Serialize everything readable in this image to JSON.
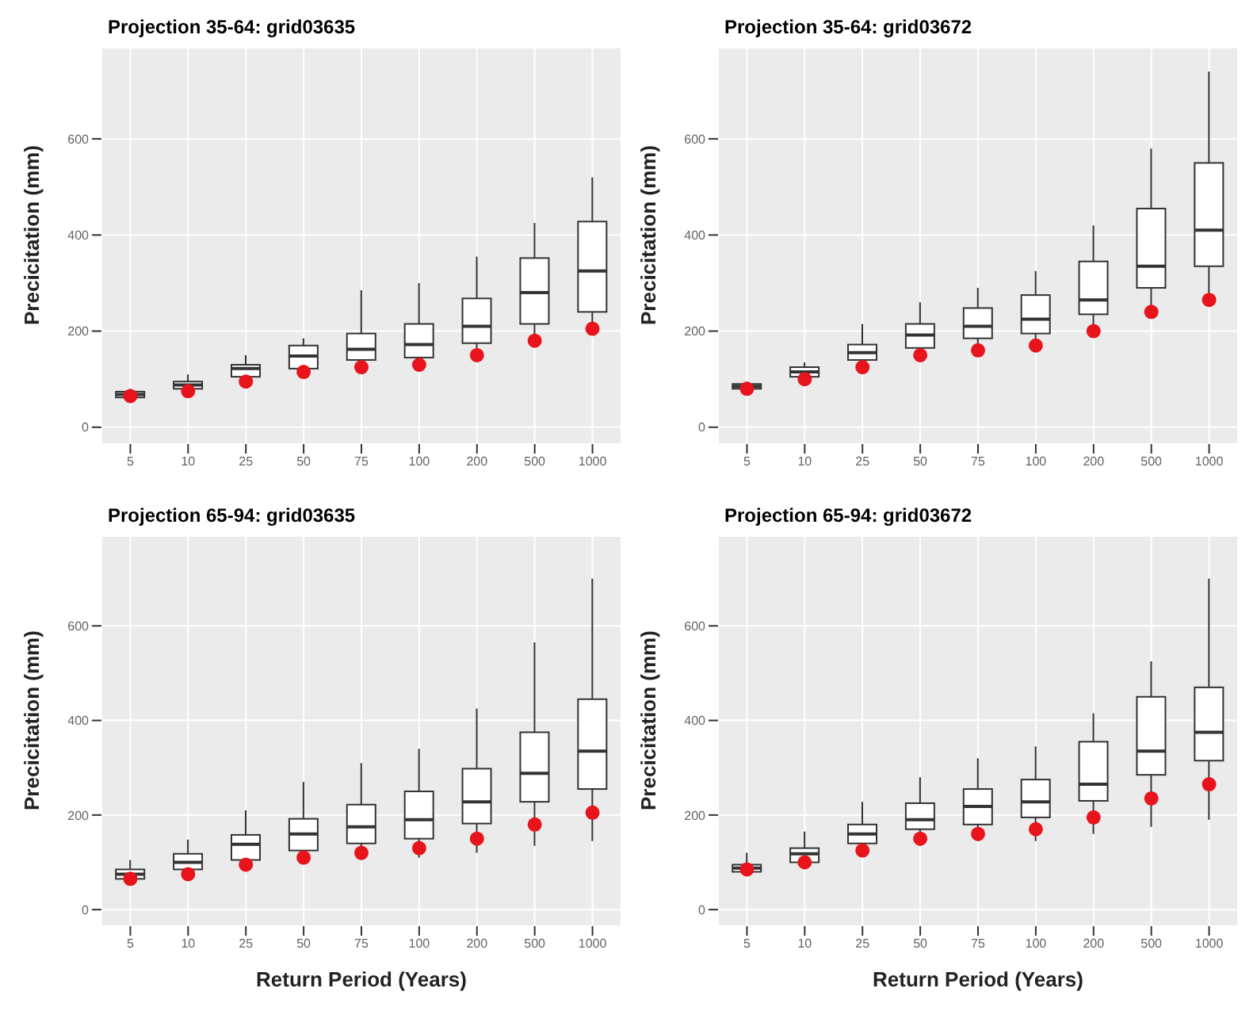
{
  "chart_data": [
    {
      "type": "box",
      "title": "Projection 35-64: grid03635",
      "ylabel": "Precicitation (mm)",
      "categories": [
        "5",
        "10",
        "25",
        "50",
        "75",
        "100",
        "200",
        "500",
        "1000"
      ],
      "ylim": [
        -35,
        790
      ],
      "yticks": [
        0,
        200,
        400,
        600
      ],
      "grid": true,
      "legend": false,
      "series": [
        {
          "type": "box",
          "color": "#333333",
          "boxes": [
            {
              "low": 58,
              "q1": 62,
              "median": 68,
              "q3": 74,
              "high": 80
            },
            {
              "low": 75,
              "q1": 80,
              "median": 88,
              "q3": 95,
              "high": 110
            },
            {
              "low": 100,
              "q1": 105,
              "median": 122,
              "q3": 130,
              "high": 150
            },
            {
              "low": 110,
              "q1": 122,
              "median": 148,
              "q3": 170,
              "high": 185
            },
            {
              "low": 120,
              "q1": 140,
              "median": 162,
              "q3": 195,
              "high": 285
            },
            {
              "low": 125,
              "q1": 145,
              "median": 172,
              "q3": 215,
              "high": 300
            },
            {
              "low": 150,
              "q1": 175,
              "median": 210,
              "q3": 268,
              "high": 355
            },
            {
              "low": 185,
              "q1": 215,
              "median": 280,
              "q3": 352,
              "high": 425
            },
            {
              "low": 210,
              "q1": 240,
              "median": 325,
              "q3": 428,
              "high": 520
            }
          ]
        },
        {
          "type": "scatter",
          "color": "#e8141c",
          "values": [
            65,
            75,
            95,
            115,
            125,
            130,
            150,
            180,
            205
          ]
        }
      ]
    },
    {
      "type": "box",
      "title": "Projection 35-64: grid03672",
      "ylabel": "Precicitation (mm)",
      "categories": [
        "5",
        "10",
        "25",
        "50",
        "75",
        "100",
        "200",
        "500",
        "1000"
      ],
      "ylim": [
        -35,
        790
      ],
      "yticks": [
        0,
        200,
        400,
        600
      ],
      "grid": true,
      "legend": false,
      "series": [
        {
          "type": "box",
          "color": "#333333",
          "boxes": [
            {
              "low": 78,
              "q1": 80,
              "median": 85,
              "q3": 90,
              "high": 95
            },
            {
              "low": 100,
              "q1": 105,
              "median": 115,
              "q3": 125,
              "high": 135
            },
            {
              "low": 130,
              "q1": 140,
              "median": 155,
              "q3": 172,
              "high": 215
            },
            {
              "low": 150,
              "q1": 165,
              "median": 192,
              "q3": 215,
              "high": 260
            },
            {
              "low": 165,
              "q1": 185,
              "median": 210,
              "q3": 248,
              "high": 290
            },
            {
              "low": 175,
              "q1": 195,
              "median": 225,
              "q3": 275,
              "high": 325
            },
            {
              "low": 205,
              "q1": 235,
              "median": 265,
              "q3": 345,
              "high": 420
            },
            {
              "low": 245,
              "q1": 290,
              "median": 335,
              "q3": 455,
              "high": 580
            },
            {
              "low": 275,
              "q1": 335,
              "median": 410,
              "q3": 550,
              "high": 740
            }
          ]
        },
        {
          "type": "scatter",
          "color": "#e8141c",
          "values": [
            80,
            100,
            125,
            150,
            160,
            170,
            200,
            240,
            265
          ]
        }
      ]
    },
    {
      "type": "box",
      "title": "Projection 65-94: grid03635",
      "xlabel": "Return Period (Years)",
      "ylabel": "Precicitation (mm)",
      "categories": [
        "5",
        "10",
        "25",
        "50",
        "75",
        "100",
        "200",
        "500",
        "1000"
      ],
      "ylim": [
        -35,
        790
      ],
      "yticks": [
        0,
        200,
        400,
        600
      ],
      "grid": true,
      "legend": false,
      "series": [
        {
          "type": "box",
          "color": "#333333",
          "boxes": [
            {
              "low": 55,
              "q1": 65,
              "median": 75,
              "q3": 85,
              "high": 105
            },
            {
              "low": 70,
              "q1": 85,
              "median": 100,
              "q3": 118,
              "high": 148
            },
            {
              "low": 90,
              "q1": 105,
              "median": 138,
              "q3": 158,
              "high": 210
            },
            {
              "low": 100,
              "q1": 125,
              "median": 160,
              "q3": 192,
              "high": 270
            },
            {
              "low": 105,
              "q1": 140,
              "median": 175,
              "q3": 222,
              "high": 310
            },
            {
              "low": 110,
              "q1": 150,
              "median": 190,
              "q3": 250,
              "high": 340
            },
            {
              "low": 120,
              "q1": 182,
              "median": 228,
              "q3": 298,
              "high": 425
            },
            {
              "low": 135,
              "q1": 228,
              "median": 288,
              "q3": 375,
              "high": 565
            },
            {
              "low": 145,
              "q1": 255,
              "median": 335,
              "q3": 445,
              "high": 700
            }
          ]
        },
        {
          "type": "scatter",
          "color": "#e8141c",
          "values": [
            65,
            75,
            95,
            110,
            120,
            130,
            150,
            180,
            205
          ]
        }
      ]
    },
    {
      "type": "box",
      "title": "Projection 65-94: grid03672",
      "xlabel": "Return Period (Years)",
      "ylabel": "Precicitation (mm)",
      "categories": [
        "5",
        "10",
        "25",
        "50",
        "75",
        "100",
        "200",
        "500",
        "1000"
      ],
      "ylim": [
        -35,
        790
      ],
      "yticks": [
        0,
        200,
        400,
        600
      ],
      "grid": true,
      "legend": false,
      "series": [
        {
          "type": "box",
          "color": "#333333",
          "boxes": [
            {
              "low": 72,
              "q1": 80,
              "median": 88,
              "q3": 95,
              "high": 120
            },
            {
              "low": 90,
              "q1": 100,
              "median": 118,
              "q3": 130,
              "high": 165
            },
            {
              "low": 120,
              "q1": 140,
              "median": 160,
              "q3": 180,
              "high": 228
            },
            {
              "low": 135,
              "q1": 170,
              "median": 190,
              "q3": 225,
              "high": 280
            },
            {
              "low": 145,
              "q1": 180,
              "median": 218,
              "q3": 255,
              "high": 320
            },
            {
              "low": 145,
              "q1": 195,
              "median": 228,
              "q3": 275,
              "high": 345
            },
            {
              "low": 160,
              "q1": 230,
              "median": 265,
              "q3": 355,
              "high": 415
            },
            {
              "low": 175,
              "q1": 285,
              "median": 335,
              "q3": 450,
              "high": 525
            },
            {
              "low": 190,
              "q1": 315,
              "median": 375,
              "q3": 470,
              "high": 700
            }
          ]
        },
        {
          "type": "scatter",
          "color": "#e8141c",
          "values": [
            85,
            100,
            125,
            150,
            160,
            170,
            195,
            235,
            265
          ]
        }
      ]
    }
  ]
}
